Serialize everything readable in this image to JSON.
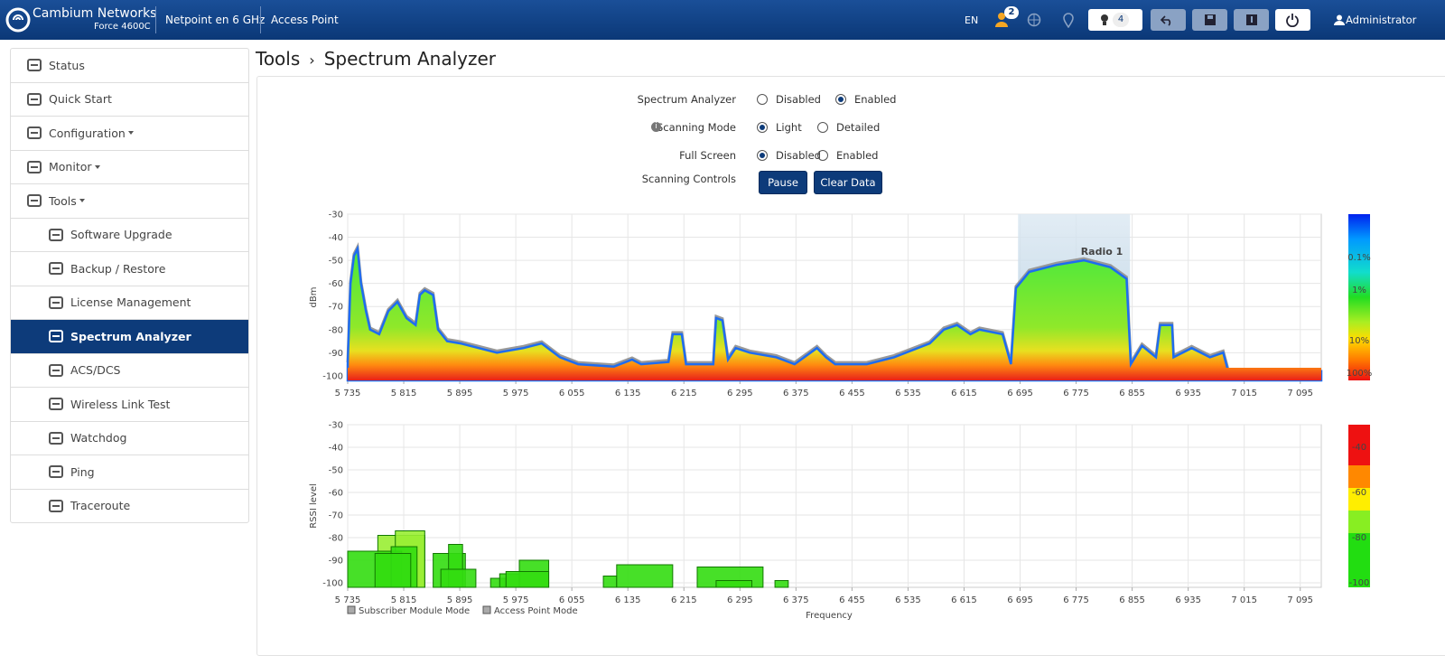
{
  "header": {
    "brand": "Cambium Networks",
    "model": "Force 4600C",
    "device_name": "Netpoint en 6 GHz",
    "mode": "Access Point",
    "language": "EN",
    "user_badge": "2",
    "alarm_count": "4",
    "user": "Administrator"
  },
  "sidebar": [
    {
      "label": "Status"
    },
    {
      "label": "Quick Start"
    },
    {
      "label": "Configuration",
      "dropdown": true
    },
    {
      "label": "Monitor",
      "dropdown": true
    },
    {
      "label": "Tools",
      "dropdown": true
    },
    {
      "label": "Software Upgrade",
      "sub": true
    },
    {
      "label": "Backup / Restore",
      "sub": true
    },
    {
      "label": "License Management",
      "sub": true
    },
    {
      "label": "Spectrum Analyzer",
      "sub": true,
      "active": true
    },
    {
      "label": "ACS/DCS",
      "sub": true
    },
    {
      "label": "Wireless Link Test",
      "sub": true
    },
    {
      "label": "Watchdog",
      "sub": true
    },
    {
      "label": "Ping",
      "sub": true
    },
    {
      "label": "Traceroute",
      "sub": true
    }
  ],
  "breadcrumb": {
    "parent": "Tools",
    "current": "Spectrum Analyzer"
  },
  "form": {
    "rows": [
      {
        "label": "Spectrum Analyzer",
        "options": [
          {
            "label": "Disabled",
            "checked": false
          },
          {
            "label": "Enabled",
            "checked": true
          }
        ]
      },
      {
        "label": "Scanning Mode",
        "info": true,
        "options": [
          {
            "label": "Light",
            "checked": true
          },
          {
            "label": "Detailed",
            "checked": false
          }
        ]
      },
      {
        "label": "Full Screen",
        "options": [
          {
            "label": "Disabled",
            "checked": true
          },
          {
            "label": "Enabled",
            "checked": false
          }
        ]
      }
    ],
    "controls": {
      "label": "Scanning Controls",
      "buttons": [
        "Pause",
        "Clear Data"
      ]
    }
  },
  "chart_data": [
    {
      "type": "area",
      "y_label": "dBm",
      "xlim": [
        5735,
        7125
      ],
      "ylim": [
        -102,
        -30
      ],
      "yticks": [
        -30,
        -40,
        -50,
        -60,
        -70,
        -80,
        -90,
        -100
      ],
      "xticks": [
        {
          "value": 5735,
          "label": "5 735"
        },
        {
          "value": 5815,
          "label": "5 815"
        },
        {
          "value": 5895,
          "label": "5 895"
        },
        {
          "value": 5975,
          "label": "5 975"
        },
        {
          "value": 6055,
          "label": "6 055"
        },
        {
          "value": 6135,
          "label": "6 135"
        },
        {
          "value": 6215,
          "label": "6 215"
        },
        {
          "value": 6295,
          "label": "6 295"
        },
        {
          "value": 6375,
          "label": "6 375"
        },
        {
          "value": 6455,
          "label": "6 455"
        },
        {
          "value": 6535,
          "label": "6 535"
        },
        {
          "value": 6615,
          "label": "6 615"
        },
        {
          "value": 6695,
          "label": "6 695"
        },
        {
          "value": 6775,
          "label": "6 775"
        },
        {
          "value": 6855,
          "label": "6 855"
        },
        {
          "value": 6935,
          "label": "6 935"
        },
        {
          "value": 7015,
          "label": "7 015"
        },
        {
          "value": 7095,
          "label": "7 095"
        }
      ],
      "x": [
        5735,
        5739,
        5744,
        5749,
        5754,
        5761,
        5767,
        5780,
        5793,
        5806,
        5819,
        5832,
        5838,
        5845,
        5857,
        5864,
        5877,
        5896,
        5922,
        5948,
        5986,
        6012,
        6038,
        6064,
        6115,
        6141,
        6154,
        6193,
        6199,
        6212,
        6218,
        6257,
        6261,
        6270,
        6278,
        6289,
        6309,
        6347,
        6373,
        6405,
        6418,
        6431,
        6476,
        6515,
        6566,
        6586,
        6605,
        6624,
        6637,
        6670,
        6682,
        6689,
        6708,
        6747,
        6786,
        6824,
        6847,
        6853,
        6869,
        6889,
        6895,
        6912,
        6914,
        6940,
        6966,
        6985,
        6992,
        7125
      ],
      "values": [
        -95,
        -60,
        -48,
        -45,
        -60,
        -72,
        -80,
        -82,
        -72,
        -68,
        -75,
        -78,
        -65,
        -63,
        -65,
        -80,
        -85,
        -86,
        -88,
        -90,
        -88,
        -86,
        -92,
        -95,
        -96,
        -93,
        -95,
        -94,
        -82,
        -82,
        -95,
        -95,
        -75,
        -76,
        -93,
        -88,
        -90,
        -92,
        -95,
        -88,
        -92,
        -95,
        -95,
        -92,
        -86,
        -80,
        -78,
        -82,
        -80,
        -82,
        -95,
        -62,
        -55,
        -52,
        -50,
        -53,
        -58,
        -95,
        -87,
        -92,
        -78,
        -78,
        -92,
        -88,
        -92,
        -90,
        -98,
        -98
      ],
      "highlight": {
        "label": "Radio 1",
        "range": [
          6692,
          6852
        ]
      },
      "colorbar_labels": [
        "0.1%",
        "1%",
        "10%",
        "100%"
      ]
    },
    {
      "type": "box",
      "y_label": "RSSI level",
      "x_label": "Frequency",
      "xlim": [
        5735,
        7125
      ],
      "ylim": [
        -102,
        -30
      ],
      "yticks": [
        -30,
        -40,
        -50,
        -60,
        -70,
        -80,
        -90,
        -100
      ],
      "xticks": [
        {
          "value": 5735,
          "label": "5 735"
        },
        {
          "value": 5815,
          "label": "5 815"
        },
        {
          "value": 5895,
          "label": "5 895"
        },
        {
          "value": 5975,
          "label": "5 975"
        },
        {
          "value": 6055,
          "label": "6 055"
        },
        {
          "value": 6135,
          "label": "6 135"
        },
        {
          "value": 6215,
          "label": "6 215"
        },
        {
          "value": 6295,
          "label": "6 295"
        },
        {
          "value": 6375,
          "label": "6 375"
        },
        {
          "value": 6455,
          "label": "6 455"
        },
        {
          "value": 6535,
          "label": "6 535"
        },
        {
          "value": 6615,
          "label": "6 615"
        },
        {
          "value": 6695,
          "label": "6 695"
        },
        {
          "value": 6775,
          "label": "6 775"
        },
        {
          "value": 6855,
          "label": "6 855"
        },
        {
          "value": 6935,
          "label": "6 935"
        },
        {
          "value": 7015,
          "label": "7 015"
        },
        {
          "value": 7095,
          "label": "7 095"
        }
      ],
      "bars": [
        {
          "x0": 5778,
          "x1": 5845,
          "value": -79,
          "color": "#99ee33"
        },
        {
          "x0": 5803,
          "x1": 5845,
          "value": -77,
          "color": "#99ee33"
        },
        {
          "x0": 5735,
          "x1": 5812,
          "value": -86,
          "color": "#33dd11"
        },
        {
          "x0": 5797,
          "x1": 5834,
          "value": -84,
          "color": "#33dd11"
        },
        {
          "x0": 5774,
          "x1": 5825,
          "value": -87,
          "color": "#33dd11"
        },
        {
          "x0": 5857,
          "x1": 5903,
          "value": -87,
          "color": "#33dd11"
        },
        {
          "x0": 5879,
          "x1": 5899,
          "value": -83,
          "color": "#33dd11"
        },
        {
          "x0": 5868,
          "x1": 5918,
          "value": -94,
          "color": "#33dd11"
        },
        {
          "x0": 5939,
          "x1": 5961,
          "value": -98,
          "color": "#33dd11"
        },
        {
          "x0": 5952,
          "x1": 5980,
          "value": -96,
          "color": "#33dd11"
        },
        {
          "x0": 5980,
          "x1": 6022,
          "value": -90,
          "color": "#33dd11"
        },
        {
          "x0": 5961,
          "x1": 6022,
          "value": -95,
          "color": "#33dd11"
        },
        {
          "x0": 6100,
          "x1": 6119,
          "value": -97,
          "color": "#33dd11"
        },
        {
          "x0": 6119,
          "x1": 6199,
          "value": -92,
          "color": "#33dd11"
        },
        {
          "x0": 6234,
          "x1": 6328,
          "value": -93,
          "color": "#33dd11"
        },
        {
          "x0": 6261,
          "x1": 6312,
          "value": -99,
          "color": "#33dd11"
        },
        {
          "x0": 6345,
          "x1": 6364,
          "value": -99,
          "color": "#33dd11"
        }
      ],
      "legend": [
        {
          "name": "Subscriber Module Mode",
          "color": "#aaaaaa"
        },
        {
          "name": "Access Point Mode",
          "color": "#aaaaaa"
        }
      ],
      "colorbar_labels": [
        {
          "value": -40,
          "label": "-40"
        },
        {
          "value": -60,
          "label": "-60"
        },
        {
          "value": -80,
          "label": "-80"
        },
        {
          "value": -100,
          "label": "-100"
        }
      ]
    }
  ]
}
